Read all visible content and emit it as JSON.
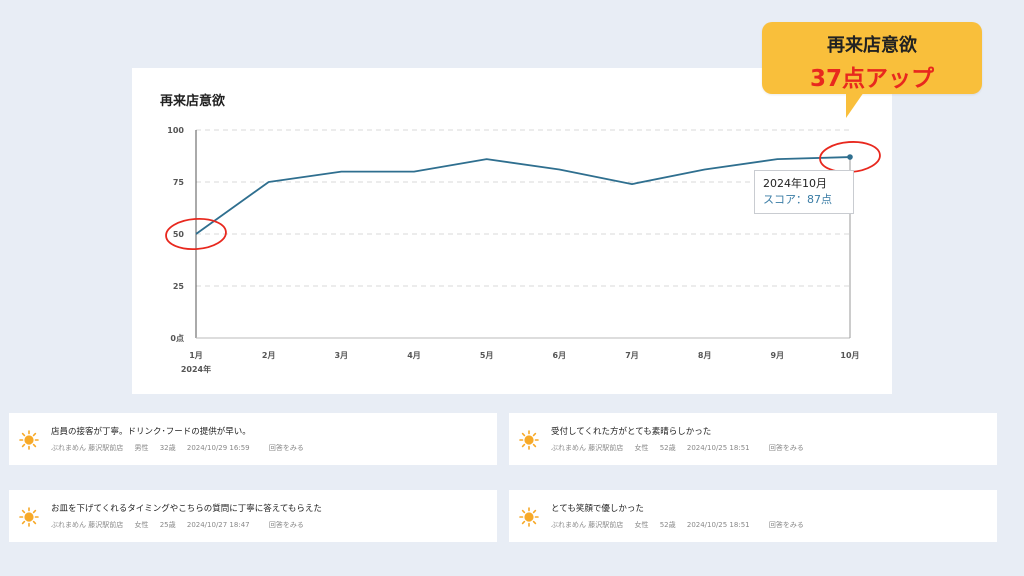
{
  "card": {
    "title": "再来店意欲"
  },
  "callout": {
    "line1": "再来店意欲",
    "line2": "37点アップ"
  },
  "tooltip": {
    "date": "2024年10月",
    "score": "スコア：87点"
  },
  "colors": {
    "line": "#2f6f8f",
    "highlight": "#e8281e",
    "callout": "#f9bf3b",
    "grid": "#d8d8d8",
    "sun": "#f7a928"
  },
  "chart_data": {
    "type": "line",
    "categories": [
      "1月",
      "2月",
      "3月",
      "4月",
      "5月",
      "6月",
      "7月",
      "8月",
      "9月",
      "10月"
    ],
    "x_sublabel": "2024年",
    "series": [
      {
        "values": [
          50,
          75,
          80,
          80,
          86,
          81,
          74,
          81,
          86,
          87
        ]
      }
    ],
    "yticks": [
      0,
      25,
      50,
      75,
      100
    ],
    "ytick_labels": [
      "0点",
      "25",
      "50",
      "75",
      "100"
    ],
    "ylim": [
      0,
      100
    ],
    "grid": true,
    "highlighted_points": [
      0,
      9
    ]
  },
  "reviews": [
    {
      "icon": "sun-icon",
      "text": "店員の接客が丁寧。ドリンク･フードの提供が早い。",
      "store": "ぶれまめん 藤沢駅前店",
      "gender": "男性",
      "age": "32歳",
      "datetime": "2024/10/29 16:59",
      "link": "回答をみる"
    },
    {
      "icon": "sun-icon",
      "text": "受付してくれた方がとても素晴らしかった",
      "store": "ぶれまめん 藤沢駅前店",
      "gender": "女性",
      "age": "52歳",
      "datetime": "2024/10/25 18:51",
      "link": "回答をみる"
    },
    {
      "icon": "sun-icon",
      "text": "お皿を下げてくれるタイミングやこちらの質問に丁寧に答えてもらえた",
      "store": "ぶれまめん 藤沢駅前店",
      "gender": "女性",
      "age": "25歳",
      "datetime": "2024/10/27 18:47",
      "link": "回答をみる"
    },
    {
      "icon": "sun-icon",
      "text": "とても笑顔で優しかった",
      "store": "ぶれまめん 藤沢駅前店",
      "gender": "女性",
      "age": "52歳",
      "datetime": "2024/10/25 18:51",
      "link": "回答をみる"
    }
  ]
}
